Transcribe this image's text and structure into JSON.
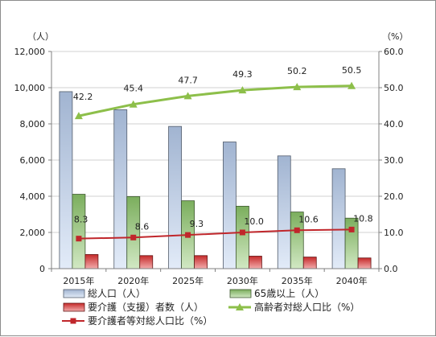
{
  "chart_data": {
    "type": "bar",
    "categories": [
      "2015年",
      "2020年",
      "2025年",
      "2030年",
      "2035年",
      "2040年"
    ],
    "left_axis": {
      "unit": "（人）",
      "ylim": [
        0,
        12000
      ],
      "step": 2000,
      "tick_labels": [
        "0",
        "2,000",
        "4,000",
        "6,000",
        "8,000",
        "10,000",
        "12,000"
      ]
    },
    "right_axis": {
      "unit": "（%）",
      "ylim": [
        0,
        60
      ],
      "step": 10,
      "tick_labels": [
        "0.0",
        "10.0",
        "20.0",
        "30.0",
        "40.0",
        "50.0",
        "60.0"
      ]
    },
    "series": [
      {
        "name": "総人口（人）",
        "kind": "bar",
        "axis": "left",
        "color": "#b7cdee",
        "values": [
          9780,
          8780,
          7860,
          7000,
          6230,
          5520
        ]
      },
      {
        "name": "65歳以上（人）",
        "kind": "bar",
        "axis": "left",
        "color": "#8cc66a",
        "values": [
          4110,
          3980,
          3750,
          3450,
          3130,
          2790
        ]
      },
      {
        "name": "要介護（支援）者数（人）",
        "kind": "bar",
        "axis": "left",
        "color": "#e03030",
        "values": [
          780,
          720,
          720,
          690,
          640,
          590
        ]
      },
      {
        "name": "高齢者対総人口比（%）",
        "kind": "line",
        "axis": "right",
        "color": "#8dbf4a",
        "values": [
          42.2,
          45.4,
          47.7,
          49.3,
          50.2,
          50.5
        ],
        "labels": [
          "42.2",
          "45.4",
          "47.7",
          "49.3",
          "50.2",
          "50.5"
        ]
      },
      {
        "name": "要介護者等対総人口比（%）",
        "kind": "line",
        "axis": "right",
        "color": "#c0262b",
        "values": [
          8.3,
          8.6,
          9.3,
          10.0,
          10.6,
          10.8
        ],
        "labels": [
          "8.3",
          "8.6",
          "9.3",
          "10.0",
          "10.6",
          "10.8"
        ]
      }
    ],
    "legend_position": "bottom",
    "grid": true
  }
}
